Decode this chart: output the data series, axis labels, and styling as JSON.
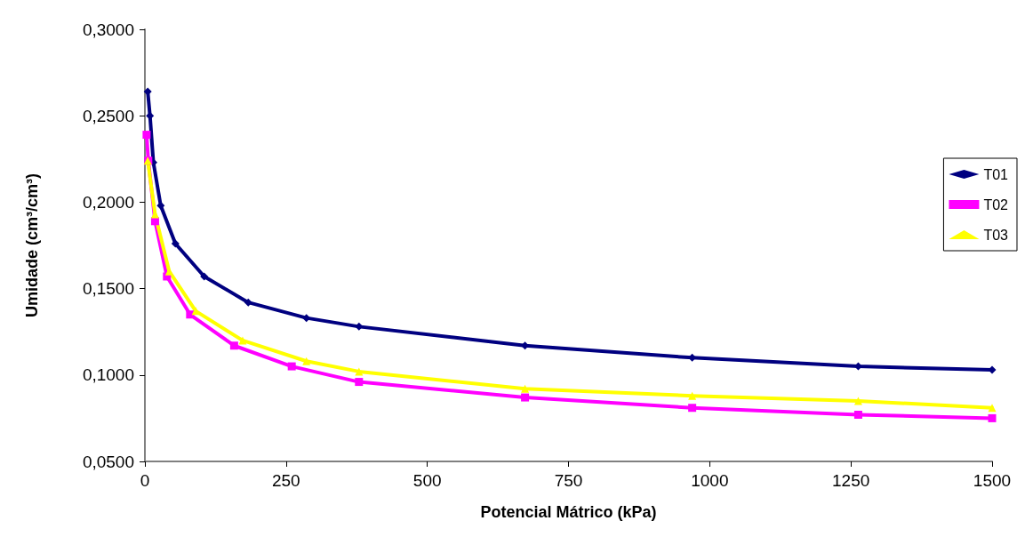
{
  "chart_data": {
    "type": "line",
    "xlabel": "Potencial Mátrico (kPa)",
    "ylabel": "Umidade (cm³/cm³)",
    "xlim": [
      0,
      1500
    ],
    "xticks": [
      0,
      250,
      500,
      750,
      1000,
      1250,
      1500
    ],
    "ylim": [
      0.05,
      0.3
    ],
    "yticks": [
      {
        "value": 0.05,
        "label": "0,0500"
      },
      {
        "value": 0.1,
        "label": "0,1000"
      },
      {
        "value": 0.15,
        "label": "0,1500"
      },
      {
        "value": 0.2,
        "label": "0,2000"
      },
      {
        "value": 0.25,
        "label": "0,2500"
      },
      {
        "value": 0.3,
        "label": "0,3000"
      }
    ],
    "grid": false,
    "legend": "right",
    "line_style": "solid",
    "series": [
      {
        "name": "T01",
        "color": "#000080",
        "marker": "diamond",
        "x": [
          5,
          9,
          15,
          28,
          54,
          105,
          183,
          286,
          379,
          673,
          969,
          1263,
          1500
        ],
        "values": [
          0.264,
          0.25,
          0.223,
          0.198,
          0.176,
          0.157,
          0.142,
          0.133,
          0.128,
          0.117,
          0.11,
          0.105,
          0.103
        ]
      },
      {
        "name": "T02",
        "color": "#ff00ff",
        "marker": "square",
        "x": [
          3,
          6,
          18,
          39,
          80,
          158,
          260,
          379,
          673,
          969,
          1263,
          1500
        ],
        "values": [
          0.239,
          0.224,
          0.189,
          0.157,
          0.135,
          0.117,
          0.105,
          0.096,
          0.087,
          0.081,
          0.077,
          0.075
        ]
      },
      {
        "name": "T03",
        "color": "#ffff00",
        "marker": "triangle",
        "x": [
          5,
          18,
          43,
          90,
          173,
          286,
          379,
          673,
          969,
          1263,
          1500
        ],
        "values": [
          0.224,
          0.193,
          0.16,
          0.137,
          0.12,
          0.108,
          0.102,
          0.092,
          0.088,
          0.085,
          0.081
        ]
      }
    ]
  }
}
